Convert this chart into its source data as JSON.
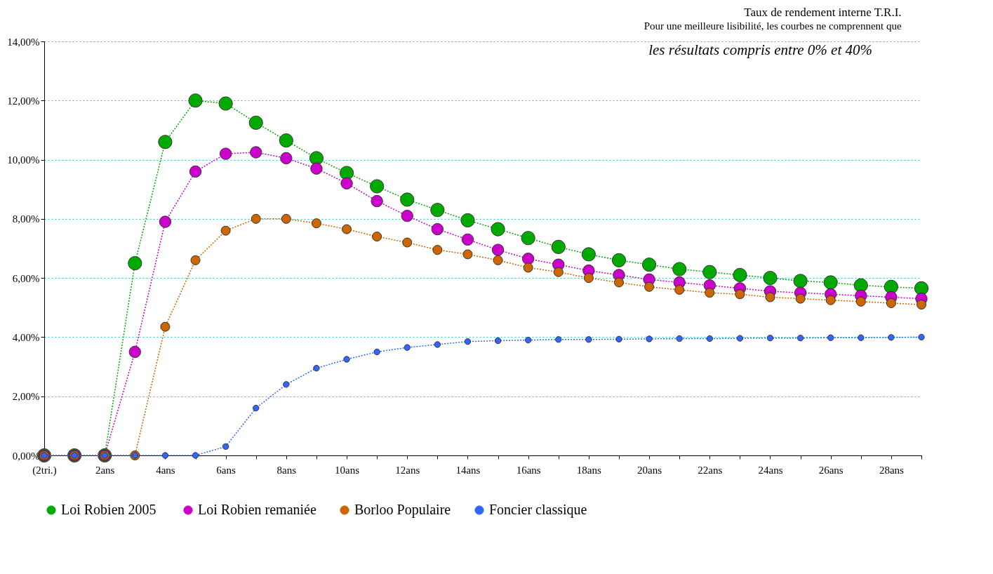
{
  "chart_data": {
    "type": "line",
    "title": "Taux de rendement interne  T.R.I.",
    "subtitle": "Pour une meilleure lisibilité, les courbes ne comprennent que",
    "annotations": [
      "les résultats compris entre 0% et 40%"
    ],
    "categories": [
      "(2tri.)",
      null,
      "2ans",
      null,
      "4ans",
      null,
      "6ans",
      null,
      "8ans",
      null,
      "10ans",
      null,
      "12ans",
      null,
      "14ans",
      null,
      "16ans",
      null,
      "18ans",
      null,
      "20ans",
      null,
      "22ans",
      null,
      "24ans",
      null,
      "26ans",
      null,
      "28ans",
      null
    ],
    "ylim": [
      0,
      14
    ],
    "yticks": [
      {
        "value": 0,
        "label": "0,00%"
      },
      {
        "value": 2,
        "label": "2,00%"
      },
      {
        "value": 4,
        "label": "4,00%"
      },
      {
        "value": 6,
        "label": "6,00%"
      },
      {
        "value": 8,
        "label": "8,00%"
      },
      {
        "value": 10,
        "label": "10,00%"
      },
      {
        "value": 12,
        "label": "12,00%"
      },
      {
        "value": 14,
        "label": "14,00%"
      }
    ],
    "grid": "y",
    "legend": "bottom",
    "marker": "circle",
    "line_style": "dotted",
    "series": [
      {
        "name": "Loi Robien  2005",
        "color": "#00aa00",
        "values": [
          0,
          0,
          0,
          6.5,
          10.6,
          12.0,
          11.9,
          11.25,
          10.65,
          10.05,
          9.55,
          9.1,
          8.65,
          8.3,
          7.95,
          7.65,
          7.35,
          7.05,
          6.8,
          6.6,
          6.45,
          6.3,
          6.2,
          6.1,
          6.0,
          5.9,
          5.85,
          5.75,
          5.7,
          5.65
        ]
      },
      {
        "name": "Loi Robien remaniée",
        "color": "#cc00cc",
        "values": [
          0,
          0,
          0,
          3.5,
          7.9,
          9.6,
          10.2,
          10.25,
          10.05,
          9.7,
          9.2,
          8.6,
          8.1,
          7.65,
          7.3,
          6.95,
          6.65,
          6.45,
          6.25,
          6.1,
          5.95,
          5.85,
          5.75,
          5.65,
          5.55,
          5.5,
          5.45,
          5.4,
          5.35,
          5.3
        ]
      },
      {
        "name": "Borloo Populaire",
        "color": "#cc6600",
        "values": [
          0,
          0,
          0,
          0,
          4.35,
          6.6,
          7.6,
          8.0,
          8.0,
          7.85,
          7.65,
          7.4,
          7.2,
          6.95,
          6.8,
          6.6,
          6.35,
          6.2,
          6.0,
          5.85,
          5.7,
          5.6,
          5.5,
          5.45,
          5.35,
          5.3,
          5.25,
          5.2,
          5.15,
          5.1
        ]
      },
      {
        "name": "Foncier classique",
        "color": "#3366ff",
        "values": [
          0,
          0,
          0,
          0,
          0,
          0,
          0.3,
          1.6,
          2.4,
          2.95,
          3.25,
          3.5,
          3.65,
          3.75,
          3.85,
          3.88,
          3.9,
          3.92,
          3.92,
          3.93,
          3.94,
          3.95,
          3.95,
          3.96,
          3.97,
          3.97,
          3.98,
          3.98,
          3.99,
          4.0
        ]
      }
    ]
  }
}
